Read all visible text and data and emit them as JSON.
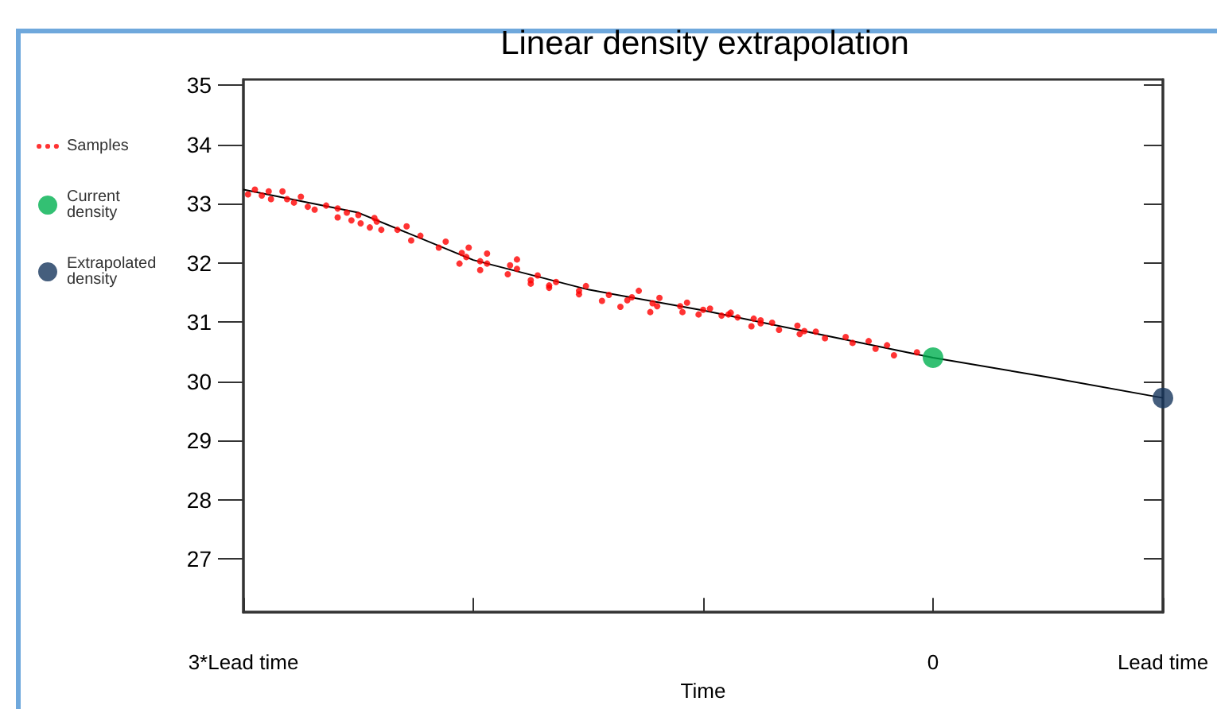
{
  "chart_data": {
    "type": "scatter",
    "title": "Linear density extrapolation",
    "xlabel": "Time",
    "xlim": [
      -3,
      1
    ],
    "xticks": [
      {
        "value": -3,
        "label": "3*Lead time"
      },
      {
        "value": -2,
        "label": null
      },
      {
        "value": -1,
        "label": null
      },
      0,
      {
        "value": 1,
        "label": "Lead time"
      }
    ],
    "ylim": [
      26.1,
      35.1
    ],
    "yticks": [
      27,
      28,
      29,
      30,
      31,
      32,
      33,
      34,
      35
    ],
    "grid": false,
    "legend": "left",
    "series": [
      {
        "name": "Samples",
        "marker": "circle",
        "color": "#ff0000",
        "x": [
          -2.98,
          -2.95,
          -2.92,
          -2.89,
          -2.88,
          -2.83,
          -2.81,
          -2.78,
          -2.75,
          -2.72,
          -2.69,
          -2.64,
          -2.59,
          -2.59,
          -2.55,
          -2.53,
          -2.5,
          -2.49,
          -2.45,
          -2.43,
          -2.42,
          -2.4,
          -2.33,
          -2.29,
          -2.27,
          -2.23,
          -2.15,
          -2.12,
          -2.06,
          -2.05,
          -2.03,
          -2.02,
          -1.97,
          -1.97,
          -1.94,
          -1.94,
          -1.85,
          -1.84,
          -1.81,
          -1.81,
          -1.75,
          -1.75,
          -1.72,
          -1.67,
          -1.67,
          -1.64,
          -1.54,
          -1.54,
          -1.51,
          -1.44,
          -1.41,
          -1.36,
          -1.33,
          -1.31,
          -1.28,
          -1.23,
          -1.22,
          -1.2,
          -1.19,
          -1.1,
          -1.09,
          -1.07,
          -1.02,
          -1,
          -0.97,
          -0.92,
          -0.89,
          -0.88,
          -0.85,
          -0.79,
          -0.78,
          -0.75,
          -0.75,
          -0.7,
          -0.67,
          -0.59,
          -0.58,
          -0.56,
          -0.51,
          -0.47,
          -0.38,
          -0.35,
          -0.28,
          -0.25,
          -0.2,
          -0.17,
          -0.07
        ],
        "values": [
          33.16,
          33.24,
          33.14,
          33.21,
          33.08,
          33.21,
          33.08,
          33.02,
          33.12,
          32.95,
          32.9,
          32.97,
          32.92,
          32.77,
          32.85,
          32.72,
          32.81,
          32.67,
          32.6,
          32.76,
          32.7,
          32.56,
          32.56,
          32.62,
          32.38,
          32.46,
          32.26,
          32.36,
          31.99,
          32.17,
          32.1,
          32.26,
          31.88,
          32.03,
          32.16,
          31.99,
          31.81,
          31.96,
          31.9,
          32.06,
          31.65,
          31.71,
          31.79,
          31.58,
          31.62,
          31.68,
          31.47,
          31.53,
          31.61,
          31.36,
          31.46,
          31.26,
          31.37,
          31.42,
          31.53,
          31.17,
          31.32,
          31.27,
          31.41,
          31.27,
          31.17,
          31.33,
          31.13,
          31.21,
          31.23,
          31.11,
          31.13,
          31.16,
          31.08,
          30.93,
          31.06,
          31.03,
          30.98,
          30.99,
          30.87,
          30.94,
          30.8,
          30.85,
          30.84,
          30.73,
          30.75,
          30.65,
          30.68,
          30.55,
          30.61,
          30.44,
          30.49
        ]
      },
      {
        "type": "line",
        "marker": "none",
        "line_style": "solid",
        "color": "#000000",
        "x": [
          -3,
          -2.5,
          -2,
          -1.5,
          -1,
          -0.5,
          0,
          0.5,
          1
        ],
        "values": [
          33.24,
          32.85,
          32.05,
          31.55,
          31.2,
          30.8,
          30.4,
          30.07,
          29.72
        ]
      },
      {
        "name": "Current density",
        "type": "scatter",
        "marker": "circle",
        "color": "#00b050",
        "x": [
          0
        ],
        "values": [
          30.4
        ]
      },
      {
        "name": "Extrapolated density",
        "type": "scatter",
        "marker": "circle",
        "color": "#17365d",
        "x": [
          1
        ],
        "values": [
          29.72
        ]
      }
    ]
  }
}
